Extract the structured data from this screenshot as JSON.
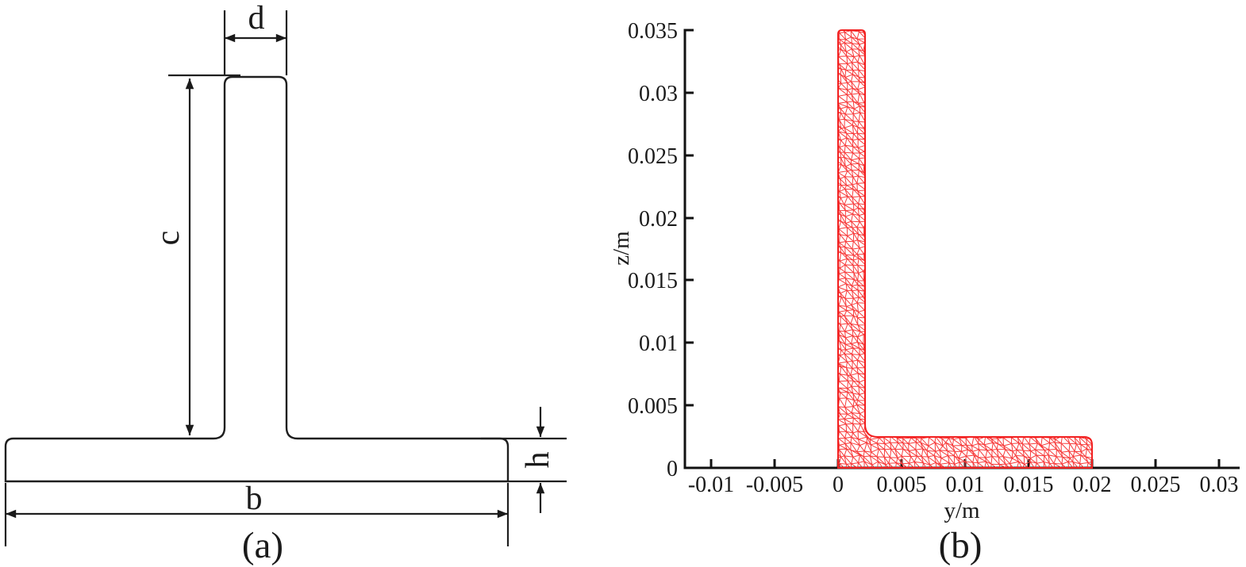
{
  "accent_colors": {
    "mesh_red": "#f73c3c",
    "mesh_boundary_red": "#f21f1f",
    "line_black": "#1a1a1a"
  },
  "panel_a": {
    "caption": "(a)",
    "labels": {
      "d": "d",
      "c": "c",
      "h": "h",
      "b": "b"
    }
  },
  "panel_b": {
    "caption": "(b)",
    "xlabel": "y/m",
    "ylabel": "z/m",
    "x_tick_labels": [
      "-0.01",
      "-0.005",
      "0",
      "0.005",
      "0.01",
      "0.015",
      "0.02",
      "0.025",
      "0.03"
    ],
    "y_tick_labels": [
      "0",
      "0.005",
      "0.01",
      "0.015",
      "0.02",
      "0.025",
      "0.03",
      "0.035"
    ]
  },
  "chart_data": {
    "type": "area",
    "title": "",
    "xlabel": "y/m",
    "ylabel": "z/m",
    "xlim": [
      -0.0125,
      0.0325
    ],
    "ylim": [
      0,
      0.035
    ],
    "x_ticks": [
      -0.01,
      -0.005,
      0,
      0.005,
      0.01,
      0.015,
      0.02,
      0.025,
      0.03
    ],
    "y_ticks": [
      0,
      0.005,
      0.01,
      0.015,
      0.02,
      0.025,
      0.03,
      0.035
    ],
    "grid": false,
    "legend": false,
    "series": [
      {
        "name": "triangular finite-element mesh of half T-section",
        "color": "#f73c3c",
        "region_outline_points": [
          [
            0,
            0
          ],
          [
            0,
            0.035
          ],
          [
            0.0021,
            0.035
          ],
          [
            0.0021,
            0.0035
          ],
          [
            0.0032,
            0.0025
          ],
          [
            0.0197,
            0.0025
          ],
          [
            0.02,
            0.0021
          ],
          [
            0.02,
            0
          ],
          [
            0,
            0
          ]
        ]
      }
    ]
  }
}
